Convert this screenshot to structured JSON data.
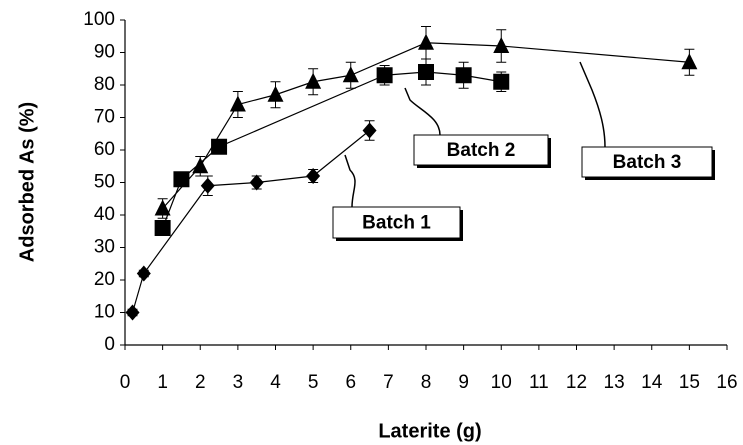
{
  "chart_data": {
    "type": "line",
    "x_label": "Laterite (g)",
    "y_label": "Adsorbed As (%)",
    "xlim": [
      0,
      16
    ],
    "xticks": [
      0,
      1,
      2,
      3,
      4,
      5,
      6,
      7,
      8,
      9,
      10,
      11,
      12,
      13,
      14,
      15,
      16
    ],
    "ylim": [
      0,
      100
    ],
    "yticks": [
      0,
      10,
      20,
      30,
      40,
      50,
      60,
      70,
      80,
      90,
      100
    ],
    "grid": false,
    "series": [
      {
        "name": "Batch 1",
        "color": "#000000",
        "marker": "diamond",
        "x": [
          0.2,
          0.5,
          2.2,
          3.5,
          5,
          6.5
        ],
        "values": [
          10,
          22,
          49,
          50,
          52,
          66
        ],
        "errors": [
          1,
          1,
          3,
          2,
          2,
          3
        ]
      },
      {
        "name": "Batch 2",
        "color": "#000000",
        "marker": "square",
        "x": [
          1,
          1.5,
          2.5,
          6.9,
          8,
          9,
          10
        ],
        "values": [
          36,
          51,
          61,
          83,
          84,
          83,
          81
        ],
        "errors": [
          2,
          2,
          2,
          3,
          4,
          4,
          3
        ]
      },
      {
        "name": "Batch 3",
        "color": "#000000",
        "marker": "triangle",
        "x": [
          1,
          2,
          3,
          4,
          5,
          6,
          8,
          10,
          15
        ],
        "values": [
          42,
          55,
          74,
          77,
          81,
          83,
          93,
          92,
          87
        ],
        "errors": [
          3,
          3,
          4,
          4,
          4,
          4,
          5,
          5,
          4
        ]
      }
    ]
  }
}
